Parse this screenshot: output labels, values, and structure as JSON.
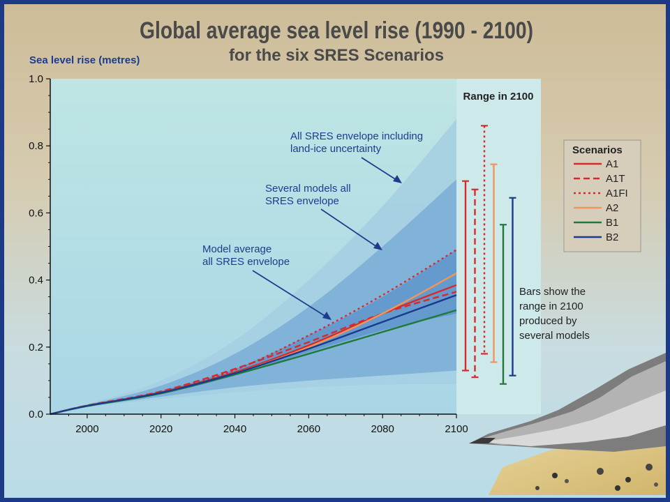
{
  "chart_data": {
    "type": "line",
    "title": "Global average sea level rise (1990 - 2100)",
    "subtitle": "for the six SRES Scenarios",
    "xlabel": "",
    "ylabel": "Sea level rise (metres)",
    "xlim": [
      1990,
      2100
    ],
    "ylim": [
      0,
      1.0
    ],
    "xticks": [
      "2000",
      "2020",
      "2040",
      "2060",
      "2080",
      "2100"
    ],
    "yticks": [
      "0.0",
      "0.2",
      "0.4",
      "0.6",
      "0.8",
      "1.0"
    ],
    "grid": false,
    "legend": {
      "title": "Scenarios",
      "position": "right",
      "entries": [
        "A1",
        "A1T",
        "A1FI",
        "A2",
        "B1",
        "B2"
      ]
    },
    "envelopes": [
      {
        "name": "All SRES envelope including land-ice uncertainty",
        "x": [
          1990,
          2000,
          2020,
          2040,
          2060,
          2080,
          2100
        ],
        "lower": [
          0,
          0.02,
          0.045,
          0.065,
          0.08,
          0.088,
          0.09
        ],
        "upper": [
          0,
          0.03,
          0.1,
          0.22,
          0.4,
          0.62,
          0.88
        ]
      },
      {
        "name": "Several models all SRES envelope",
        "x": [
          1990,
          2000,
          2020,
          2040,
          2060,
          2080,
          2100
        ],
        "lower": [
          0,
          0.022,
          0.052,
          0.08,
          0.1,
          0.115,
          0.13
        ],
        "upper": [
          0,
          0.028,
          0.085,
          0.18,
          0.32,
          0.5,
          0.7
        ]
      },
      {
        "name": "Model average all SRES envelope",
        "x": [
          1990,
          2000,
          2020,
          2040,
          2060,
          2080,
          2100
        ],
        "lower": [
          0,
          0.024,
          0.06,
          0.115,
          0.185,
          0.25,
          0.3
        ],
        "upper": [
          0,
          0.026,
          0.07,
          0.135,
          0.235,
          0.35,
          0.49
        ]
      }
    ],
    "series": [
      {
        "name": "A1",
        "color": "#d72a2a",
        "dash": "solid",
        "x": [
          1990,
          2000,
          2020,
          2040,
          2060,
          2080,
          2100
        ],
        "values": [
          0,
          0.025,
          0.065,
          0.125,
          0.205,
          0.3,
          0.385
        ]
      },
      {
        "name": "A1T",
        "color": "#d72a2a",
        "dash": "dashed",
        "x": [
          1990,
          2000,
          2020,
          2040,
          2060,
          2080,
          2100
        ],
        "values": [
          0,
          0.026,
          0.068,
          0.135,
          0.215,
          0.3,
          0.365
        ]
      },
      {
        "name": "A1FI",
        "color": "#d72a2a",
        "dash": "dotted",
        "x": [
          1990,
          2000,
          2020,
          2040,
          2060,
          2080,
          2100
        ],
        "values": [
          0,
          0.025,
          0.066,
          0.132,
          0.235,
          0.355,
          0.49
        ]
      },
      {
        "name": "A2",
        "color": "#f0965a",
        "dash": "solid",
        "x": [
          1990,
          2000,
          2020,
          2040,
          2060,
          2080,
          2100
        ],
        "values": [
          0,
          0.025,
          0.064,
          0.122,
          0.2,
          0.3,
          0.42
        ]
      },
      {
        "name": "B1",
        "color": "#1f7a3a",
        "dash": "solid",
        "x": [
          1990,
          2000,
          2020,
          2040,
          2060,
          2080,
          2100
        ],
        "values": [
          0,
          0.024,
          0.062,
          0.118,
          0.18,
          0.245,
          0.31
        ]
      },
      {
        "name": "B2",
        "color": "#1a3a8c",
        "dash": "solid",
        "x": [
          1990,
          2000,
          2020,
          2040,
          2060,
          2080,
          2100
        ],
        "values": [
          0,
          0.025,
          0.064,
          0.122,
          0.195,
          0.275,
          0.355
        ]
      }
    ],
    "range_in_2100": {
      "title": "Range in 2100",
      "bars": [
        {
          "name": "A1",
          "color": "#d72a2a",
          "dash": "solid",
          "min": 0.13,
          "max": 0.695
        },
        {
          "name": "A1T",
          "color": "#d72a2a",
          "dash": "dashed",
          "min": 0.11,
          "max": 0.67
        },
        {
          "name": "A1FI",
          "color": "#d72a2a",
          "dash": "dotted",
          "min": 0.18,
          "max": 0.86
        },
        {
          "name": "A2",
          "color": "#f0965a",
          "dash": "solid",
          "min": 0.155,
          "max": 0.745
        },
        {
          "name": "B1",
          "color": "#1f7a3a",
          "dash": "solid",
          "min": 0.09,
          "max": 0.565
        },
        {
          "name": "B2",
          "color": "#1a3a8c",
          "dash": "solid",
          "min": 0.115,
          "max": 0.645
        }
      ]
    },
    "annotations": {
      "envelope_all_line1": "All SRES envelope including",
      "envelope_all_line2": "land-ice uncertainty",
      "envelope_several_line1": "Several models all",
      "envelope_several_line2": "SRES envelope",
      "envelope_average_line1": "Model average",
      "envelope_average_line2": "all SRES envelope",
      "bars_note": [
        "Bars show  the",
        "range in 2100",
        "produced by",
        "several models"
      ]
    }
  },
  "colors": {
    "border": "#1c3a86",
    "background": "#cfc09e",
    "plot_background": "#c3e7e6",
    "envelope_outer": "#a4cfe2",
    "envelope_middle": "#7aaed6",
    "envelope_inner": "#5f95cc",
    "axis": "#111111",
    "annotation_text": "#1e3c8c"
  }
}
